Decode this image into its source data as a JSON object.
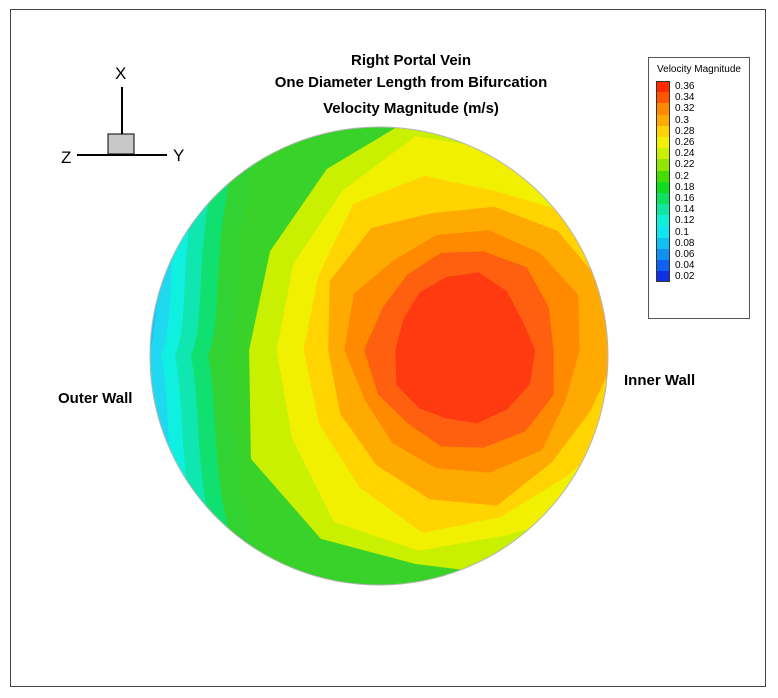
{
  "title": {
    "line1": "Right Portal Vein",
    "line2": "One Diameter Length from Bifurcation",
    "line3": "Velocity Magnitude (m/s)"
  },
  "labels": {
    "outer_wall": "Outer Wall",
    "inner_wall": "Inner Wall"
  },
  "axes": {
    "x": "X",
    "y": "Y",
    "z": "Z"
  },
  "legend": {
    "title": "Velocity Magnitude",
    "levels": [
      {
        "value": "0.36",
        "color": "#ff2a00"
      },
      {
        "value": "0.34",
        "color": "#ff5400"
      },
      {
        "value": "0.32",
        "color": "#ff8a00"
      },
      {
        "value": "0.3",
        "color": "#ffaa00"
      },
      {
        "value": "0.28",
        "color": "#ffd400"
      },
      {
        "value": "0.26",
        "color": "#f0f000"
      },
      {
        "value": "0.24",
        "color": "#c8f000"
      },
      {
        "value": "0.22",
        "color": "#90e600"
      },
      {
        "value": "0.2",
        "color": "#46dc00"
      },
      {
        "value": "0.18",
        "color": "#10dc20"
      },
      {
        "value": "0.16",
        "color": "#10e060"
      },
      {
        "value": "0.14",
        "color": "#10e6a0"
      },
      {
        "value": "0.12",
        "color": "#10f0d8"
      },
      {
        "value": "0.1",
        "color": "#10e6f0"
      },
      {
        "value": "0.08",
        "color": "#10c0f0"
      },
      {
        "value": "0.06",
        "color": "#1090f0"
      },
      {
        "value": "0.04",
        "color": "#1060f0"
      },
      {
        "value": "0.02",
        "color": "#1030e6"
      }
    ]
  },
  "contour": {
    "peak_value": 0.36,
    "min_value": 0.08,
    "band_colors": [
      "#32d232",
      "#10e070",
      "#10e6b0",
      "#10f0e0",
      "#20d8f0",
      "#22c4f4"
    ],
    "core_colors": [
      "#c8f000",
      "#f0f000",
      "#ffd400",
      "#ffaa00",
      "#ff8a00",
      "#ff6010",
      "#ff3a10"
    ]
  }
}
